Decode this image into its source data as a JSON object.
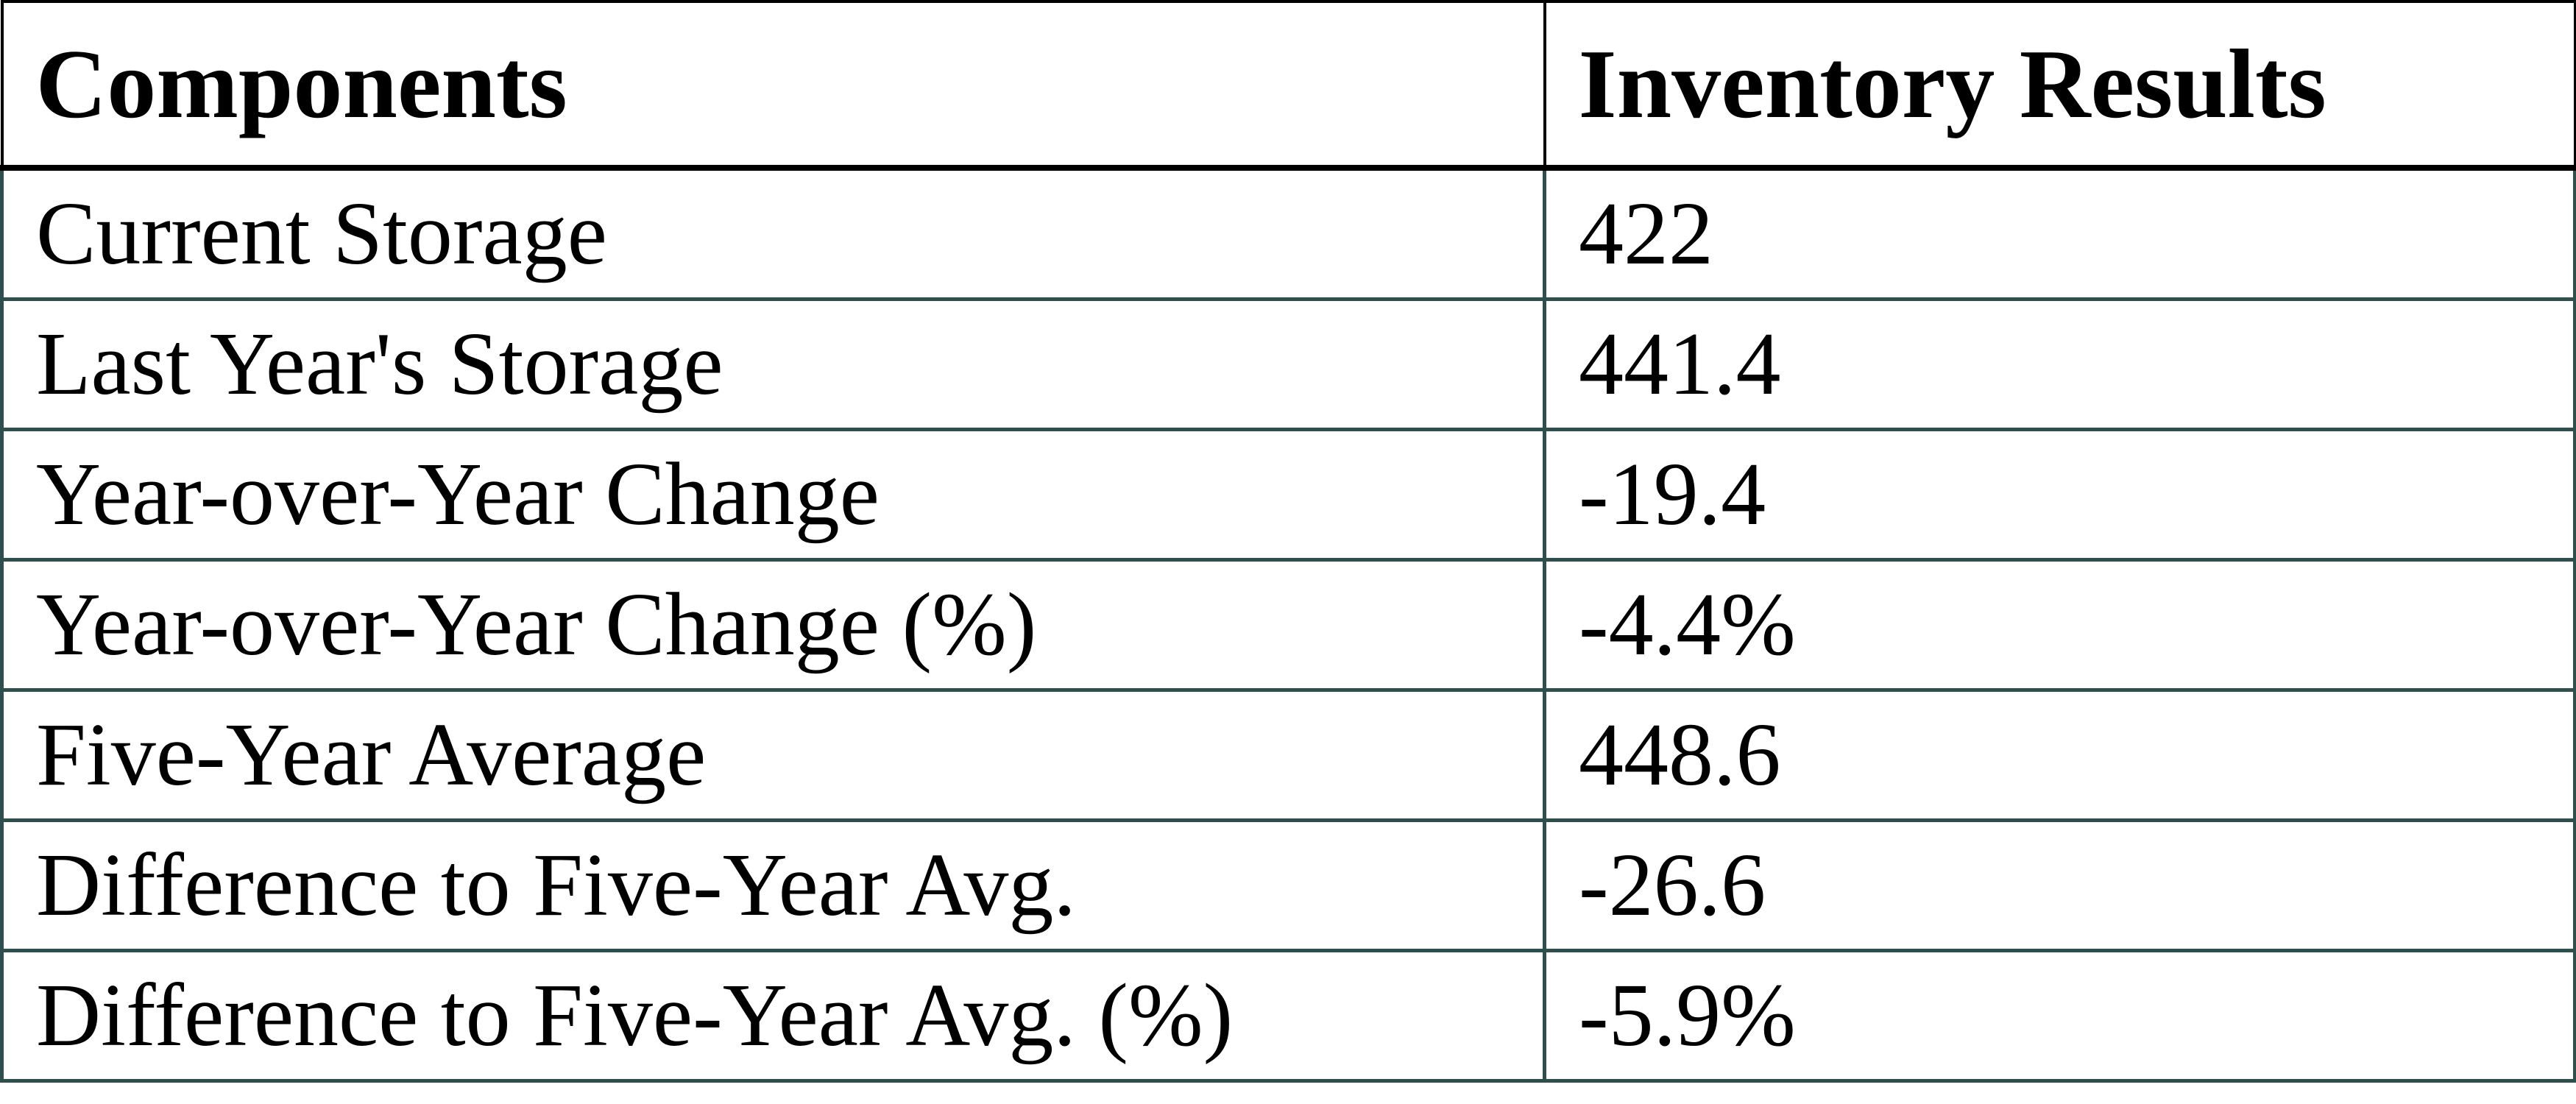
{
  "chart_data": {
    "type": "table",
    "columns": [
      "Components",
      "Inventory Results"
    ],
    "rows": [
      {
        "component": "Current Storage",
        "result": "422"
      },
      {
        "component": "Last Year's Storage",
        "result": "441.4"
      },
      {
        "component": "Year-over-Year Change",
        "result": "-19.4"
      },
      {
        "component": "Year-over-Year Change (%)",
        "result": "-4.4%"
      },
      {
        "component": "Five-Year Average",
        "result": "448.6"
      },
      {
        "component": "Difference to Five-Year Avg.",
        "result": "-26.6"
      },
      {
        "component": "Difference to Five-Year Avg. (%)",
        "result": "-5.9%"
      }
    ]
  },
  "colors": {
    "header_border": "#000000",
    "body_border": "#2F4F4F",
    "text": "#000000",
    "background": "#FFFFFF"
  }
}
